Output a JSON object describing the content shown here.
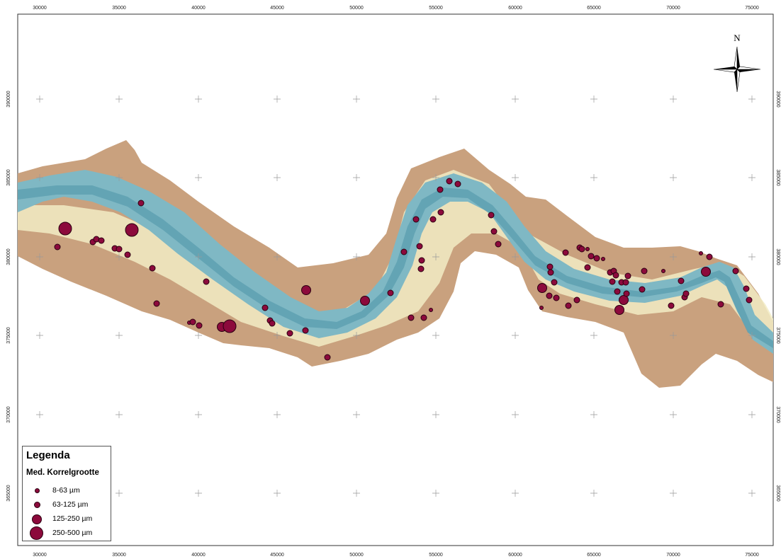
{
  "map": {
    "x_ticks": [
      "30000",
      "35000",
      "40000",
      "45000",
      "50000",
      "55000",
      "60000",
      "65000",
      "70000",
      "75000"
    ],
    "y_ticks": [
      "390000",
      "385000",
      "380000",
      "375000",
      "370000",
      "365000"
    ],
    "north_label": "N",
    "colors": {
      "land": "#c9a17e",
      "floodplain_light": "#f2ecc4",
      "channel": "#7fb8c4",
      "channel_deep": "#5c9fb0",
      "sample": "#8c0a3c",
      "sample_outline": "#2a0010"
    }
  },
  "legend": {
    "title": "Legenda",
    "subtitle": "Med. Korrelgrootte",
    "items": [
      {
        "label": "8-63 µm"
      },
      {
        "label": "63-125 µm"
      },
      {
        "label": "125-250 µm"
      },
      {
        "label": "250-500 µm"
      }
    ]
  }
}
